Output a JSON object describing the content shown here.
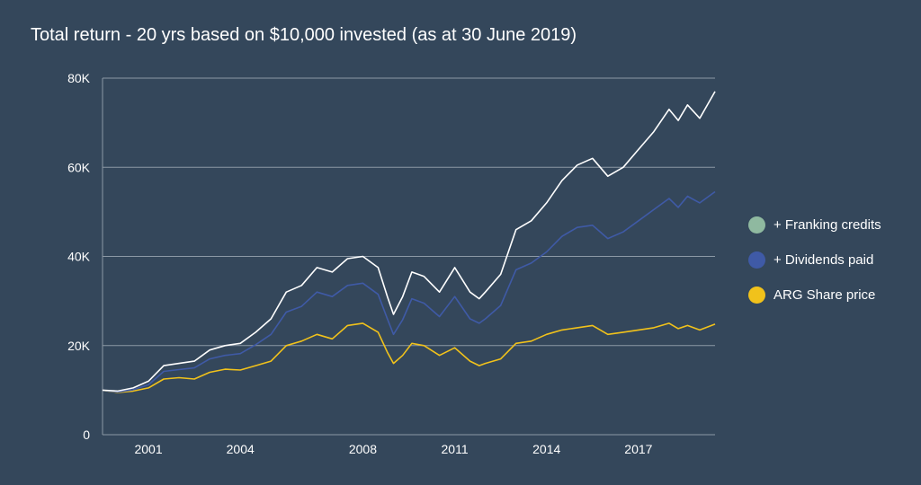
{
  "chart_data": {
    "type": "line",
    "title": "Total return - 20 yrs based on $10,000 invested (as at 30 June 2019)",
    "xlabel": "",
    "ylabel": "",
    "x_range": [
      1999.5,
      2019.5
    ],
    "ylim": [
      0,
      80000
    ],
    "y_ticks": [
      0,
      20000,
      40000,
      60000,
      80000
    ],
    "y_tick_labels": [
      "0",
      "20K",
      "40K",
      "60K",
      "80K"
    ],
    "x_ticks": [
      2001,
      2004,
      2008,
      2011,
      2014,
      2017
    ],
    "x_tick_labels": [
      "2001",
      "2004",
      "2008",
      "2011",
      "2014",
      "2017"
    ],
    "grid": "horizontal",
    "legend_position": "right",
    "x": [
      1999.5,
      2000.0,
      2000.5,
      2001.0,
      2001.5,
      2002.0,
      2002.5,
      2003.0,
      2003.5,
      2004.0,
      2004.5,
      2005.0,
      2005.5,
      2006.0,
      2006.5,
      2007.0,
      2007.5,
      2008.0,
      2008.5,
      2008.8,
      2009.0,
      2009.3,
      2009.6,
      2010.0,
      2010.5,
      2011.0,
      2011.5,
      2011.8,
      2012.0,
      2012.5,
      2013.0,
      2013.5,
      2014.0,
      2014.5,
      2015.0,
      2015.5,
      2016.0,
      2016.5,
      2017.0,
      2017.5,
      2018.0,
      2018.3,
      2018.6,
      2019.0,
      2019.5
    ],
    "series": [
      {
        "name": "+ Franking credits",
        "color": "#ffffff",
        "values": [
          10000,
          9800,
          10500,
          12000,
          15500,
          16000,
          16500,
          19000,
          20000,
          20500,
          23000,
          26000,
          32000,
          33500,
          37500,
          36500,
          39500,
          40000,
          37500,
          31000,
          27000,
          31000,
          36500,
          35500,
          32000,
          37500,
          32000,
          30500,
          32000,
          36000,
          46000,
          48000,
          52000,
          57000,
          60500,
          62000,
          58000,
          60000,
          64000,
          68000,
          73000,
          70500,
          74000,
          71000,
          77000
        ]
      },
      {
        "name": "+ Dividends paid",
        "color": "#3f5aa6",
        "values": [
          10000,
          9600,
          10100,
          11200,
          14200,
          14600,
          15000,
          17000,
          17800,
          18200,
          20200,
          22500,
          27500,
          28800,
          32000,
          31000,
          33500,
          34000,
          31500,
          26000,
          22500,
          25800,
          30500,
          29500,
          26500,
          31000,
          26000,
          25000,
          26000,
          29000,
          37000,
          38500,
          41000,
          44500,
          46500,
          47000,
          44000,
          45500,
          48000,
          50500,
          53000,
          51000,
          53500,
          52000,
          54500
        ]
      },
      {
        "name": "ARG Share price",
        "color": "#f1c21b",
        "values": [
          10000,
          9500,
          9800,
          10500,
          12500,
          12800,
          12500,
          14000,
          14700,
          14500,
          15500,
          16500,
          20000,
          21000,
          22500,
          21500,
          24500,
          25000,
          23000,
          18500,
          16000,
          17800,
          20500,
          20000,
          17800,
          19500,
          16500,
          15500,
          16000,
          17000,
          20500,
          21000,
          22500,
          23500,
          24000,
          24500,
          22500,
          23000,
          23500,
          24000,
          25000,
          23800,
          24500,
          23500,
          24800
        ]
      }
    ]
  },
  "legend": {
    "items": [
      {
        "label": "+ Franking credits",
        "color": "#8fb9a0"
      },
      {
        "label": "+ Dividends paid",
        "color": "#3f5aa6"
      },
      {
        "label": "ARG Share price",
        "color": "#f1c21b"
      }
    ]
  },
  "colors": {
    "background": "#34475b",
    "grid": "#8c98a5",
    "text": "#ffffff"
  }
}
